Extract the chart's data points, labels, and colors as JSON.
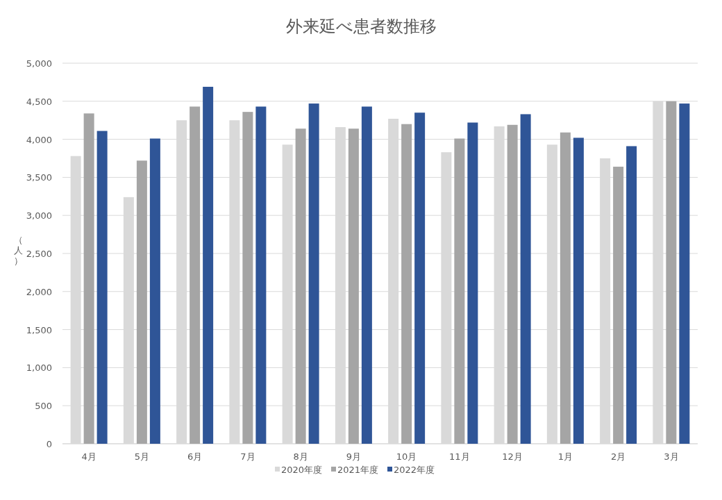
{
  "chart_data": {
    "type": "bar",
    "title": "外来延べ患者数推移",
    "ylabel": "（人）",
    "categories": [
      "4月",
      "5月",
      "6月",
      "7月",
      "8月",
      "9月",
      "10月",
      "11月",
      "12月",
      "1月",
      "2月",
      "3月"
    ],
    "series": [
      {
        "name": "2020年度",
        "color": "#d9d9d9",
        "values": [
          3780,
          3240,
          4250,
          4250,
          3930,
          4160,
          4270,
          3830,
          4170,
          3930,
          3750,
          4500
        ]
      },
      {
        "name": "2021年度",
        "color": "#a5a5a5",
        "values": [
          4340,
          3720,
          4430,
          4360,
          4140,
          4140,
          4200,
          4010,
          4190,
          4090,
          3640,
          4500
        ]
      },
      {
        "name": "2022年度",
        "color": "#2f5597",
        "values": [
          4110,
          4010,
          4690,
          4430,
          4470,
          4430,
          4350,
          4220,
          4330,
          4020,
          3910,
          4470
        ]
      }
    ],
    "ylim": [
      0,
      5000
    ],
    "yticks": [
      {
        "value": 0,
        "label": "0"
      },
      {
        "value": 500,
        "label": "500"
      },
      {
        "value": 1000,
        "label": "1,000"
      },
      {
        "value": 1500,
        "label": "1,500"
      },
      {
        "value": 2000,
        "label": "2,000"
      },
      {
        "value": 2500,
        "label": "2,500"
      },
      {
        "value": 3000,
        "label": "3,000"
      },
      {
        "value": 3500,
        "label": "3,500"
      },
      {
        "value": 4000,
        "label": "4,000"
      },
      {
        "value": 4500,
        "label": "4,500"
      },
      {
        "value": 5000,
        "label": "5,000"
      }
    ],
    "grid": "y",
    "legend": "bottom"
  }
}
